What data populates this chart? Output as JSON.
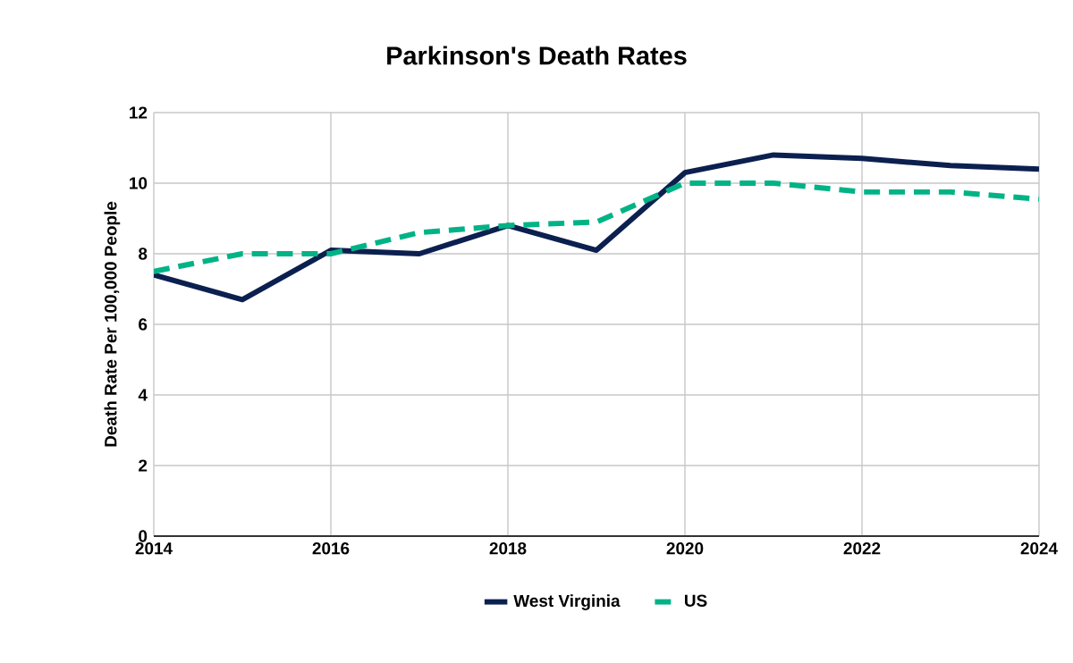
{
  "chart_data": {
    "type": "line",
    "title": "Parkinson's Death Rates",
    "ylabel": "Death Rate Per 100,000 People",
    "x": [
      2014,
      2015,
      2016,
      2017,
      2018,
      2019,
      2020,
      2021,
      2022,
      2023,
      2024
    ],
    "series": [
      {
        "name": "West Virginia",
        "color": "#0c2050",
        "line_style": "solid",
        "values": [
          7.4,
          6.7,
          8.1,
          8.0,
          8.8,
          8.1,
          10.3,
          10.8,
          10.7,
          10.5,
          10.4
        ]
      },
      {
        "name": "US",
        "color": "#00b386",
        "line_style": "dashed",
        "values": [
          7.5,
          8.0,
          8.0,
          8.6,
          8.8,
          8.9,
          10.0,
          10.0,
          9.75,
          9.75,
          9.55
        ]
      }
    ],
    "xlim": [
      2014,
      2024
    ],
    "xticks": [
      2014,
      2016,
      2018,
      2020,
      2022,
      2024
    ],
    "ylim": [
      0,
      12
    ],
    "yticks": [
      0,
      2,
      4,
      6,
      8,
      10,
      12
    ],
    "grid": true,
    "legend": "bottom",
    "marker": "none"
  }
}
